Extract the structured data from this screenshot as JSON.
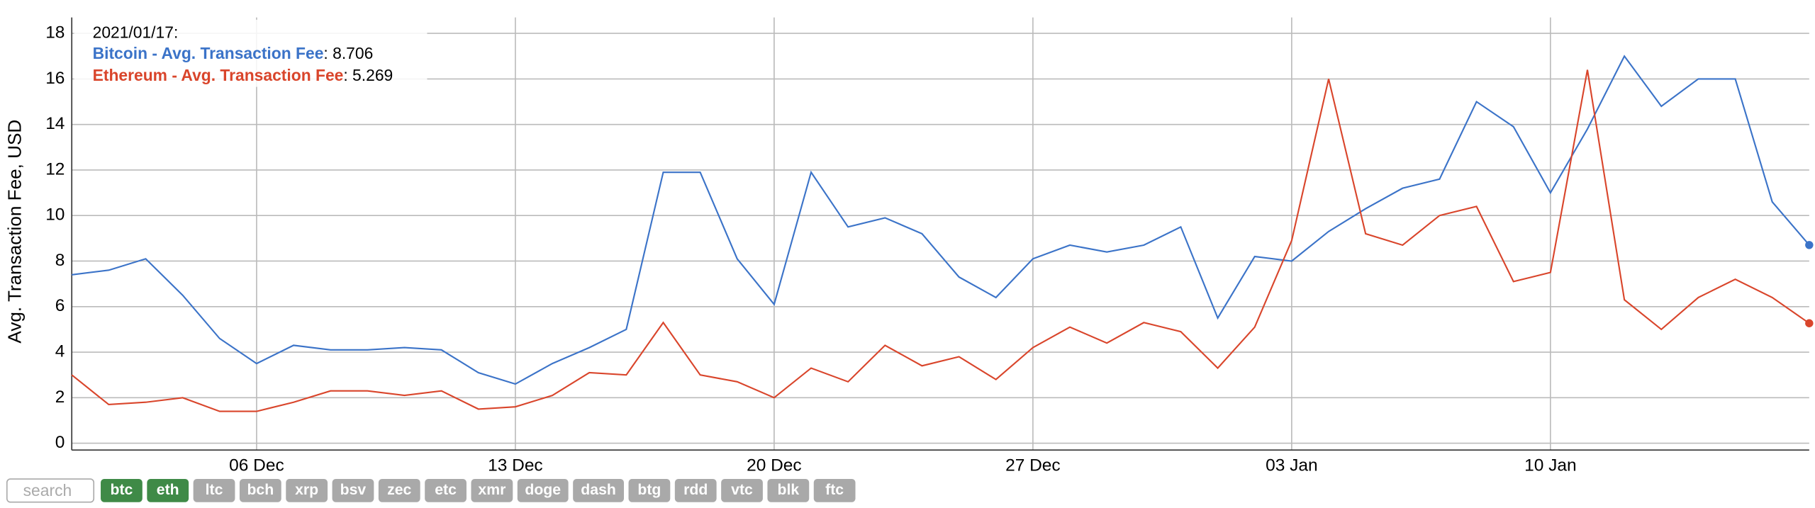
{
  "chart_data": {
    "type": "line",
    "y_label": "Avg. Transaction Fee, USD",
    "x": [
      "2020-12-01",
      "2020-12-02",
      "2020-12-03",
      "2020-12-04",
      "2020-12-05",
      "2020-12-06",
      "2020-12-07",
      "2020-12-08",
      "2020-12-09",
      "2020-12-10",
      "2020-12-11",
      "2020-12-12",
      "2020-12-13",
      "2020-12-14",
      "2020-12-15",
      "2020-12-16",
      "2020-12-17",
      "2020-12-18",
      "2020-12-19",
      "2020-12-20",
      "2020-12-21",
      "2020-12-22",
      "2020-12-23",
      "2020-12-24",
      "2020-12-25",
      "2020-12-26",
      "2020-12-27",
      "2020-12-28",
      "2020-12-29",
      "2020-12-30",
      "2020-12-31",
      "2021-01-01",
      "2021-01-02",
      "2021-01-03",
      "2021-01-04",
      "2021-01-05",
      "2021-01-06",
      "2021-01-07",
      "2021-01-08",
      "2021-01-09",
      "2021-01-10",
      "2021-01-11",
      "2021-01-12",
      "2021-01-13",
      "2021-01-14",
      "2021-01-15",
      "2021-01-16",
      "2021-01-17"
    ],
    "xticks": [
      {
        "value": "2020-12-06",
        "label": "06 Dec"
      },
      {
        "value": "2020-12-13",
        "label": "13 Dec"
      },
      {
        "value": "2020-12-20",
        "label": "20 Dec"
      },
      {
        "value": "2020-12-27",
        "label": "27 Dec"
      },
      {
        "value": "2021-01-03",
        "label": "03 Jan"
      },
      {
        "value": "2021-01-10",
        "label": "10 Jan"
      }
    ],
    "ylim": [
      -0.3,
      18.7
    ],
    "yticks": [
      0,
      2,
      4,
      6,
      8,
      10,
      12,
      14,
      16,
      18
    ],
    "grid": true,
    "series": [
      {
        "name": "Bitcoin - Avg. Transaction Fee",
        "color": "#3b73c8",
        "values": [
          7.4,
          7.6,
          8.1,
          6.5,
          4.6,
          3.5,
          4.3,
          4.1,
          4.1,
          4.2,
          4.1,
          3.1,
          2.6,
          3.5,
          4.2,
          5.0,
          11.9,
          11.9,
          8.1,
          6.1,
          11.9,
          9.5,
          9.9,
          9.2,
          7.3,
          6.4,
          8.1,
          8.7,
          8.4,
          8.7,
          9.5,
          5.5,
          8.2,
          8.0,
          9.3,
          10.3,
          11.2,
          11.6,
          15.0,
          13.9,
          11.0,
          13.8,
          17.0,
          14.8,
          16.0,
          16.0,
          10.6,
          8.706
        ]
      },
      {
        "name": "Ethereum - Avg. Transaction Fee",
        "color": "#d9452b",
        "values": [
          3.0,
          1.7,
          1.8,
          2.0,
          1.4,
          1.4,
          1.8,
          2.3,
          2.3,
          2.1,
          2.3,
          1.5,
          1.6,
          2.1,
          3.1,
          3.0,
          5.3,
          3.0,
          2.7,
          2.0,
          3.3,
          2.7,
          4.3,
          3.4,
          3.8,
          2.8,
          4.2,
          5.1,
          4.4,
          5.3,
          4.9,
          3.3,
          5.1,
          8.9,
          16.0,
          9.2,
          8.7,
          10.0,
          10.4,
          7.1,
          7.5,
          16.4,
          6.3,
          5.0,
          6.4,
          7.2,
          6.4,
          5.269
        ]
      }
    ],
    "tooltip": {
      "title": "2021/01/17:",
      "separator": ": "
    }
  },
  "controls": {
    "search_placeholder": "search",
    "buttons": [
      {
        "label": "btc",
        "active": true
      },
      {
        "label": "eth",
        "active": true
      },
      {
        "label": "ltc",
        "active": false
      },
      {
        "label": "bch",
        "active": false
      },
      {
        "label": "xrp",
        "active": false
      },
      {
        "label": "bsv",
        "active": false
      },
      {
        "label": "zec",
        "active": false
      },
      {
        "label": "etc",
        "active": false
      },
      {
        "label": "xmr",
        "active": false
      },
      {
        "label": "doge",
        "active": false
      },
      {
        "label": "dash",
        "active": false
      },
      {
        "label": "btg",
        "active": false
      },
      {
        "label": "rdd",
        "active": false
      },
      {
        "label": "vtc",
        "active": false
      },
      {
        "label": "blk",
        "active": false
      },
      {
        "label": "ftc",
        "active": false
      }
    ]
  }
}
